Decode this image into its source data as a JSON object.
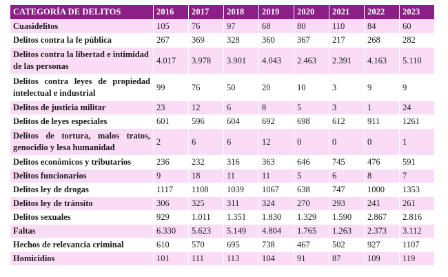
{
  "table": {
    "header": {
      "category": "CATEGORÍA DE DELITOS",
      "years": [
        "2016",
        "2017",
        "2018",
        "2019",
        "2020",
        "2021",
        "2022",
        "2023"
      ]
    },
    "rows": [
      {
        "category": "Cuasidelitos",
        "values": [
          "105",
          "76",
          "97",
          "68",
          "80",
          "110",
          "84",
          "60"
        ]
      },
      {
        "category": "Delitos contra la fe pública",
        "values": [
          "267",
          "369",
          "328",
          "360",
          "367",
          "217",
          "268",
          "282"
        ]
      },
      {
        "category": "Delitos contra la libertad e intimidad de las personas",
        "values": [
          "4.017",
          "3.978",
          "3.901",
          "4.043",
          "2.463",
          "2.391",
          "4.163",
          "5.110"
        ]
      },
      {
        "category": "Delitos contra leyes de propiedad intelectual e industrial",
        "values": [
          "99",
          "76",
          "50",
          "20",
          "10",
          "3",
          "9",
          "9"
        ]
      },
      {
        "category": "Delitos de justicia militar",
        "values": [
          "23",
          "12",
          "6",
          "8",
          "5",
          "3",
          "1",
          "24"
        ]
      },
      {
        "category": "Delitos de leyes especiales",
        "values": [
          "601",
          "596",
          "604",
          "692",
          "698",
          "612",
          "911",
          "1261"
        ]
      },
      {
        "category": "Delitos de tortura, malos tratos, genocidio y lesa humanidad",
        "values": [
          "2",
          "6",
          "6",
          "12",
          "0",
          "0",
          "0",
          "1"
        ]
      },
      {
        "category": "Delitos económicos y tributarios",
        "values": [
          "236",
          "232",
          "316",
          "363",
          "646",
          "745",
          "476",
          "591"
        ]
      },
      {
        "category": "Delitos funcionarios",
        "values": [
          "9",
          "18",
          "11",
          "11",
          "5",
          "6",
          "8",
          "7"
        ]
      },
      {
        "category": "Delitos ley de drogas",
        "values": [
          "1117",
          "1108",
          "1039",
          "1067",
          "638",
          "747",
          "1000",
          "1353"
        ]
      },
      {
        "category": "Delitos ley de tránsito",
        "values": [
          "306",
          "325",
          "311",
          "324",
          "270",
          "293",
          "241",
          "261"
        ]
      },
      {
        "category": "Delitos sexuales",
        "values": [
          "929",
          "1.011",
          "1.351",
          "1.830",
          "1.329",
          "1.590",
          "2.867",
          "2.816"
        ]
      },
      {
        "category": "Faltas",
        "values": [
          "6.330",
          "5.623",
          "5.149",
          "4.804",
          "1.765",
          "1.263",
          "2.373",
          "3.112"
        ]
      },
      {
        "category": "Hechos de relevancia criminal",
        "values": [
          "610",
          "570",
          "695",
          "738",
          "467",
          "502",
          "927",
          "1107"
        ]
      },
      {
        "category": "Homicidios",
        "values": [
          "101",
          "111",
          "113",
          "104",
          "91",
          "87",
          "109",
          "119"
        ]
      }
    ]
  },
  "colors": {
    "header_bg": "#8b1e87",
    "row_alt_bg": "#fbdcf6"
  }
}
